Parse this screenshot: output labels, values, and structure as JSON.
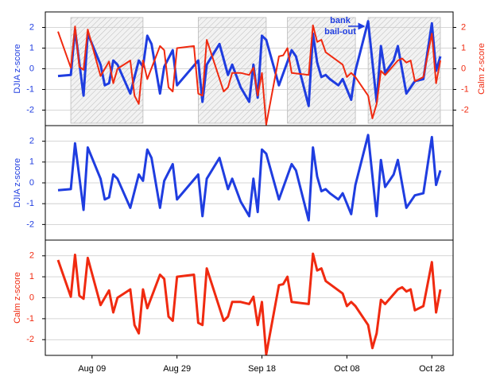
{
  "chart_data": [
    {
      "type": "line",
      "ylabel": "DJIA z-score",
      "y2label": "Calm z-score",
      "xlim": [
        "Jul 29",
        "Nov 02"
      ],
      "ylim": [
        -2.75,
        2.75
      ],
      "yticks": [
        -2,
        -1,
        0,
        1,
        2
      ],
      "y2lim": [
        -2.75,
        2.75
      ],
      "y2ticks": [
        -2,
        -1,
        0,
        1,
        2
      ],
      "grid": true,
      "shaded_ranges": [
        [
          "Aug 04",
          "Aug 21"
        ],
        [
          "Sep 03",
          "Sep 19"
        ],
        [
          "Sep 24",
          "Oct 10"
        ],
        [
          "Oct 13",
          "Oct 30"
        ]
      ],
      "annotation": [
        "bank",
        "bail-out"
      ],
      "series": [
        {
          "color": "#1f3de0",
          "x": [
            "Aug 01",
            "Aug 04",
            "Aug 05",
            "Aug 07",
            "Aug 08",
            "Aug 11",
            "Aug 12",
            "Aug 13",
            "Aug 14",
            "Aug 15",
            "Aug 18",
            "Aug 20",
            "Aug 21",
            "Aug 22",
            "Aug 23",
            "Aug 25",
            "Aug 26",
            "Aug 28",
            "Aug 29",
            "Sep 03",
            "Sep 04",
            "Sep 05",
            "Sep 08",
            "Sep 10",
            "Sep 11",
            "Sep 13",
            "Sep 15",
            "Sep 16",
            "Sep 17",
            "Sep 18",
            "Sep 19",
            "Sep 22",
            "Sep 25",
            "Sep 26",
            "Sep 29",
            "Sep 30",
            "Oct 01",
            "Oct 02",
            "Oct 03",
            "Oct 04",
            "Oct 06",
            "Oct 07",
            "Oct 09",
            "Oct 10",
            "Oct 13",
            "Oct 15",
            "Oct 16",
            "Oct 17",
            "Oct 19",
            "Oct 20",
            "Oct 22",
            "Oct 24",
            "Oct 26",
            "Oct 28",
            "Oct 29",
            "Oct 30"
          ],
          "values": [
            -0.35,
            -0.3,
            1.9,
            -1.3,
            1.7,
            0.2,
            -0.8,
            -0.7,
            0.4,
            0.2,
            -1.2,
            0.4,
            0.1,
            1.6,
            1.2,
            -1.2,
            0.1,
            0.9,
            -0.8,
            0.4,
            -1.6,
            0.2,
            1.2,
            -0.3,
            0.2,
            -0.9,
            -1.6,
            0.2,
            -1.4,
            1.6,
            1.4,
            -0.8,
            0.9,
            0.6,
            -1.8,
            1.7,
            0.3,
            -0.4,
            -0.3,
            -0.5,
            -0.8,
            -0.5,
            -1.5,
            -0.1,
            2.3,
            -1.6,
            1.1,
            -0.2,
            0.4,
            1.1,
            -1.2,
            -0.6,
            -0.5,
            2.2,
            -0.1,
            0.6
          ]
        },
        {
          "color": "#f02a10",
          "axis": "y2",
          "x": [
            "Aug 01",
            "Aug 04",
            "Aug 05",
            "Aug 06",
            "Aug 07",
            "Aug 08",
            "Aug 11",
            "Aug 13",
            "Aug 14",
            "Aug 15",
            "Aug 18",
            "Aug 19",
            "Aug 20",
            "Aug 21",
            "Aug 22",
            "Aug 25",
            "Aug 26",
            "Aug 27",
            "Aug 28",
            "Aug 29",
            "Sep 02",
            "Sep 03",
            "Sep 04",
            "Sep 05",
            "Sep 09",
            "Sep 10",
            "Sep 11",
            "Sep 13",
            "Sep 15",
            "Sep 16",
            "Sep 17",
            "Sep 18",
            "Sep 19",
            "Sep 22",
            "Sep 23",
            "Sep 24",
            "Sep 25",
            "Sep 29",
            "Sep 30",
            "Oct 01",
            "Oct 02",
            "Oct 03",
            "Oct 07",
            "Oct 08",
            "Oct 09",
            "Oct 10",
            "Oct 13",
            "Oct 14",
            "Oct 15",
            "Oct 16",
            "Oct 17",
            "Oct 20",
            "Oct 21",
            "Oct 22",
            "Oct 23",
            "Oct 24",
            "Oct 26",
            "Oct 28",
            "Oct 29",
            "Oct 30"
          ],
          "values": [
            1.8,
            0.05,
            2.05,
            0.1,
            -0.05,
            1.9,
            -0.35,
            0.35,
            -0.7,
            0.0,
            0.4,
            -1.3,
            -1.7,
            0.4,
            -0.5,
            1.1,
            0.9,
            -0.9,
            -1.1,
            1.0,
            1.1,
            -1.2,
            -1.3,
            1.4,
            -1.1,
            -0.9,
            -0.2,
            -0.2,
            -0.3,
            0.05,
            -1.3,
            -0.2,
            -2.7,
            0.6,
            0.65,
            1.0,
            -0.2,
            -0.3,
            2.1,
            1.3,
            1.4,
            0.8,
            0.2,
            -0.4,
            -0.2,
            -0.4,
            -1.3,
            -2.4,
            -1.7,
            -0.1,
            -0.3,
            0.4,
            0.5,
            0.3,
            0.4,
            -0.6,
            -0.4,
            1.7,
            -0.7,
            0.4
          ]
        }
      ]
    },
    {
      "type": "line",
      "ylabel": "DJIA z-score",
      "xlim": [
        "Jul 29",
        "Nov 02"
      ],
      "ylim": [
        -2.75,
        2.75
      ],
      "yticks": [
        -2,
        -1,
        0,
        1,
        2
      ],
      "grid": true,
      "series": [
        {
          "color": "#1f3de0",
          "x": [
            "Aug 01",
            "Aug 04",
            "Aug 05",
            "Aug 07",
            "Aug 08",
            "Aug 11",
            "Aug 12",
            "Aug 13",
            "Aug 14",
            "Aug 15",
            "Aug 18",
            "Aug 20",
            "Aug 21",
            "Aug 22",
            "Aug 23",
            "Aug 25",
            "Aug 26",
            "Aug 28",
            "Aug 29",
            "Sep 03",
            "Sep 04",
            "Sep 05",
            "Sep 08",
            "Sep 10",
            "Sep 11",
            "Sep 13",
            "Sep 15",
            "Sep 16",
            "Sep 17",
            "Sep 18",
            "Sep 19",
            "Sep 22",
            "Sep 25",
            "Sep 26",
            "Sep 29",
            "Sep 30",
            "Oct 01",
            "Oct 02",
            "Oct 03",
            "Oct 04",
            "Oct 06",
            "Oct 07",
            "Oct 09",
            "Oct 10",
            "Oct 13",
            "Oct 15",
            "Oct 16",
            "Oct 17",
            "Oct 19",
            "Oct 20",
            "Oct 22",
            "Oct 24",
            "Oct 26",
            "Oct 28",
            "Oct 29",
            "Oct 30"
          ],
          "values": [
            -0.35,
            -0.3,
            1.9,
            -1.3,
            1.7,
            0.2,
            -0.8,
            -0.7,
            0.4,
            0.2,
            -1.2,
            0.4,
            0.1,
            1.6,
            1.2,
            -1.2,
            0.1,
            0.9,
            -0.8,
            0.4,
            -1.6,
            0.2,
            1.2,
            -0.3,
            0.2,
            -0.9,
            -1.6,
            0.2,
            -1.4,
            1.6,
            1.4,
            -0.8,
            0.9,
            0.6,
            -1.8,
            1.7,
            0.3,
            -0.4,
            -0.3,
            -0.5,
            -0.8,
            -0.5,
            -1.5,
            -0.1,
            2.3,
            -1.6,
            1.1,
            -0.2,
            0.4,
            1.1,
            -1.2,
            -0.6,
            -0.5,
            2.2,
            -0.1,
            0.6
          ]
        }
      ]
    },
    {
      "type": "line",
      "ylabel": "Calm z-score",
      "xlim": [
        "Jul 29",
        "Nov 02"
      ],
      "ylim": [
        -2.75,
        2.75
      ],
      "yticks": [
        -2,
        -1,
        0,
        1,
        2
      ],
      "grid": true,
      "xticks": [
        "Aug 09",
        "Aug 29",
        "Sep 18",
        "Oct 08",
        "Oct 28"
      ],
      "series": [
        {
          "color": "#f02a10",
          "x": [
            "Aug 01",
            "Aug 04",
            "Aug 05",
            "Aug 06",
            "Aug 07",
            "Aug 08",
            "Aug 11",
            "Aug 13",
            "Aug 14",
            "Aug 15",
            "Aug 18",
            "Aug 19",
            "Aug 20",
            "Aug 21",
            "Aug 22",
            "Aug 25",
            "Aug 26",
            "Aug 27",
            "Aug 28",
            "Aug 29",
            "Sep 02",
            "Sep 03",
            "Sep 04",
            "Sep 05",
            "Sep 09",
            "Sep 10",
            "Sep 11",
            "Sep 13",
            "Sep 15",
            "Sep 16",
            "Sep 17",
            "Sep 18",
            "Sep 19",
            "Sep 22",
            "Sep 23",
            "Sep 24",
            "Sep 25",
            "Sep 29",
            "Sep 30",
            "Oct 01",
            "Oct 02",
            "Oct 03",
            "Oct 07",
            "Oct 08",
            "Oct 09",
            "Oct 10",
            "Oct 13",
            "Oct 14",
            "Oct 15",
            "Oct 16",
            "Oct 17",
            "Oct 20",
            "Oct 21",
            "Oct 22",
            "Oct 23",
            "Oct 24",
            "Oct 26",
            "Oct 28",
            "Oct 29",
            "Oct 30"
          ],
          "values": [
            1.8,
            0.05,
            2.05,
            0.1,
            -0.05,
            1.9,
            -0.35,
            0.35,
            -0.7,
            0.0,
            0.4,
            -1.3,
            -1.7,
            0.4,
            -0.5,
            1.1,
            0.9,
            -0.9,
            -1.1,
            1.0,
            1.1,
            -1.2,
            -1.3,
            1.4,
            -1.1,
            -0.9,
            -0.2,
            -0.2,
            -0.3,
            0.05,
            -1.3,
            -0.2,
            -2.7,
            0.6,
            0.65,
            1.0,
            -0.2,
            -0.3,
            2.1,
            1.3,
            1.4,
            0.8,
            0.2,
            -0.4,
            -0.2,
            -0.4,
            -1.3,
            -2.4,
            -1.7,
            -0.1,
            -0.3,
            0.4,
            0.5,
            0.3,
            0.4,
            -0.6,
            -0.4,
            1.7,
            -0.7,
            0.4
          ]
        }
      ]
    }
  ]
}
